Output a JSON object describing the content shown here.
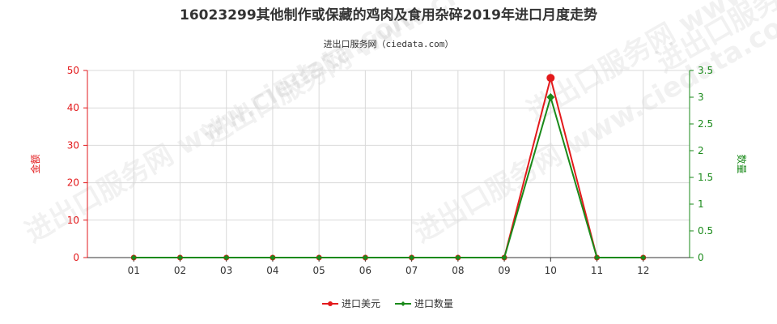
{
  "chart_data": {
    "type": "line",
    "title": "16023299其他制作或保藏的鸡肉及食用杂碎2019年进口月度走势",
    "subtitle": "进出口服务网（ciedata.com）",
    "watermark": "进出口服务网 www.ciedata.com",
    "categories": [
      "01",
      "02",
      "03",
      "04",
      "05",
      "06",
      "07",
      "08",
      "09",
      "10",
      "11",
      "12"
    ],
    "y_left": {
      "label": "金额",
      "min": 0,
      "max": 50,
      "ticks": [
        "0",
        "10",
        "20",
        "30",
        "40",
        "50"
      ],
      "color": "#e31a1c"
    },
    "y_right": {
      "label": "数量",
      "min": 0,
      "max": 3.5,
      "ticks": [
        "0",
        "0.5",
        "1",
        "1.5",
        "2",
        "2.5",
        "3",
        "3.5"
      ],
      "color": "#1a8a1a"
    },
    "grid": true,
    "legend_position": "bottom-center",
    "series": [
      {
        "name": "进口美元",
        "axis": "left",
        "color": "#e31a1c",
        "values": [
          0,
          0,
          0,
          0,
          0,
          0,
          0,
          0,
          0,
          48,
          0,
          0
        ]
      },
      {
        "name": "进口数量",
        "axis": "right",
        "color": "#1a8a1a",
        "values": [
          0,
          0,
          0,
          0,
          0,
          0,
          0,
          0,
          0,
          3,
          0,
          0
        ]
      }
    ]
  }
}
